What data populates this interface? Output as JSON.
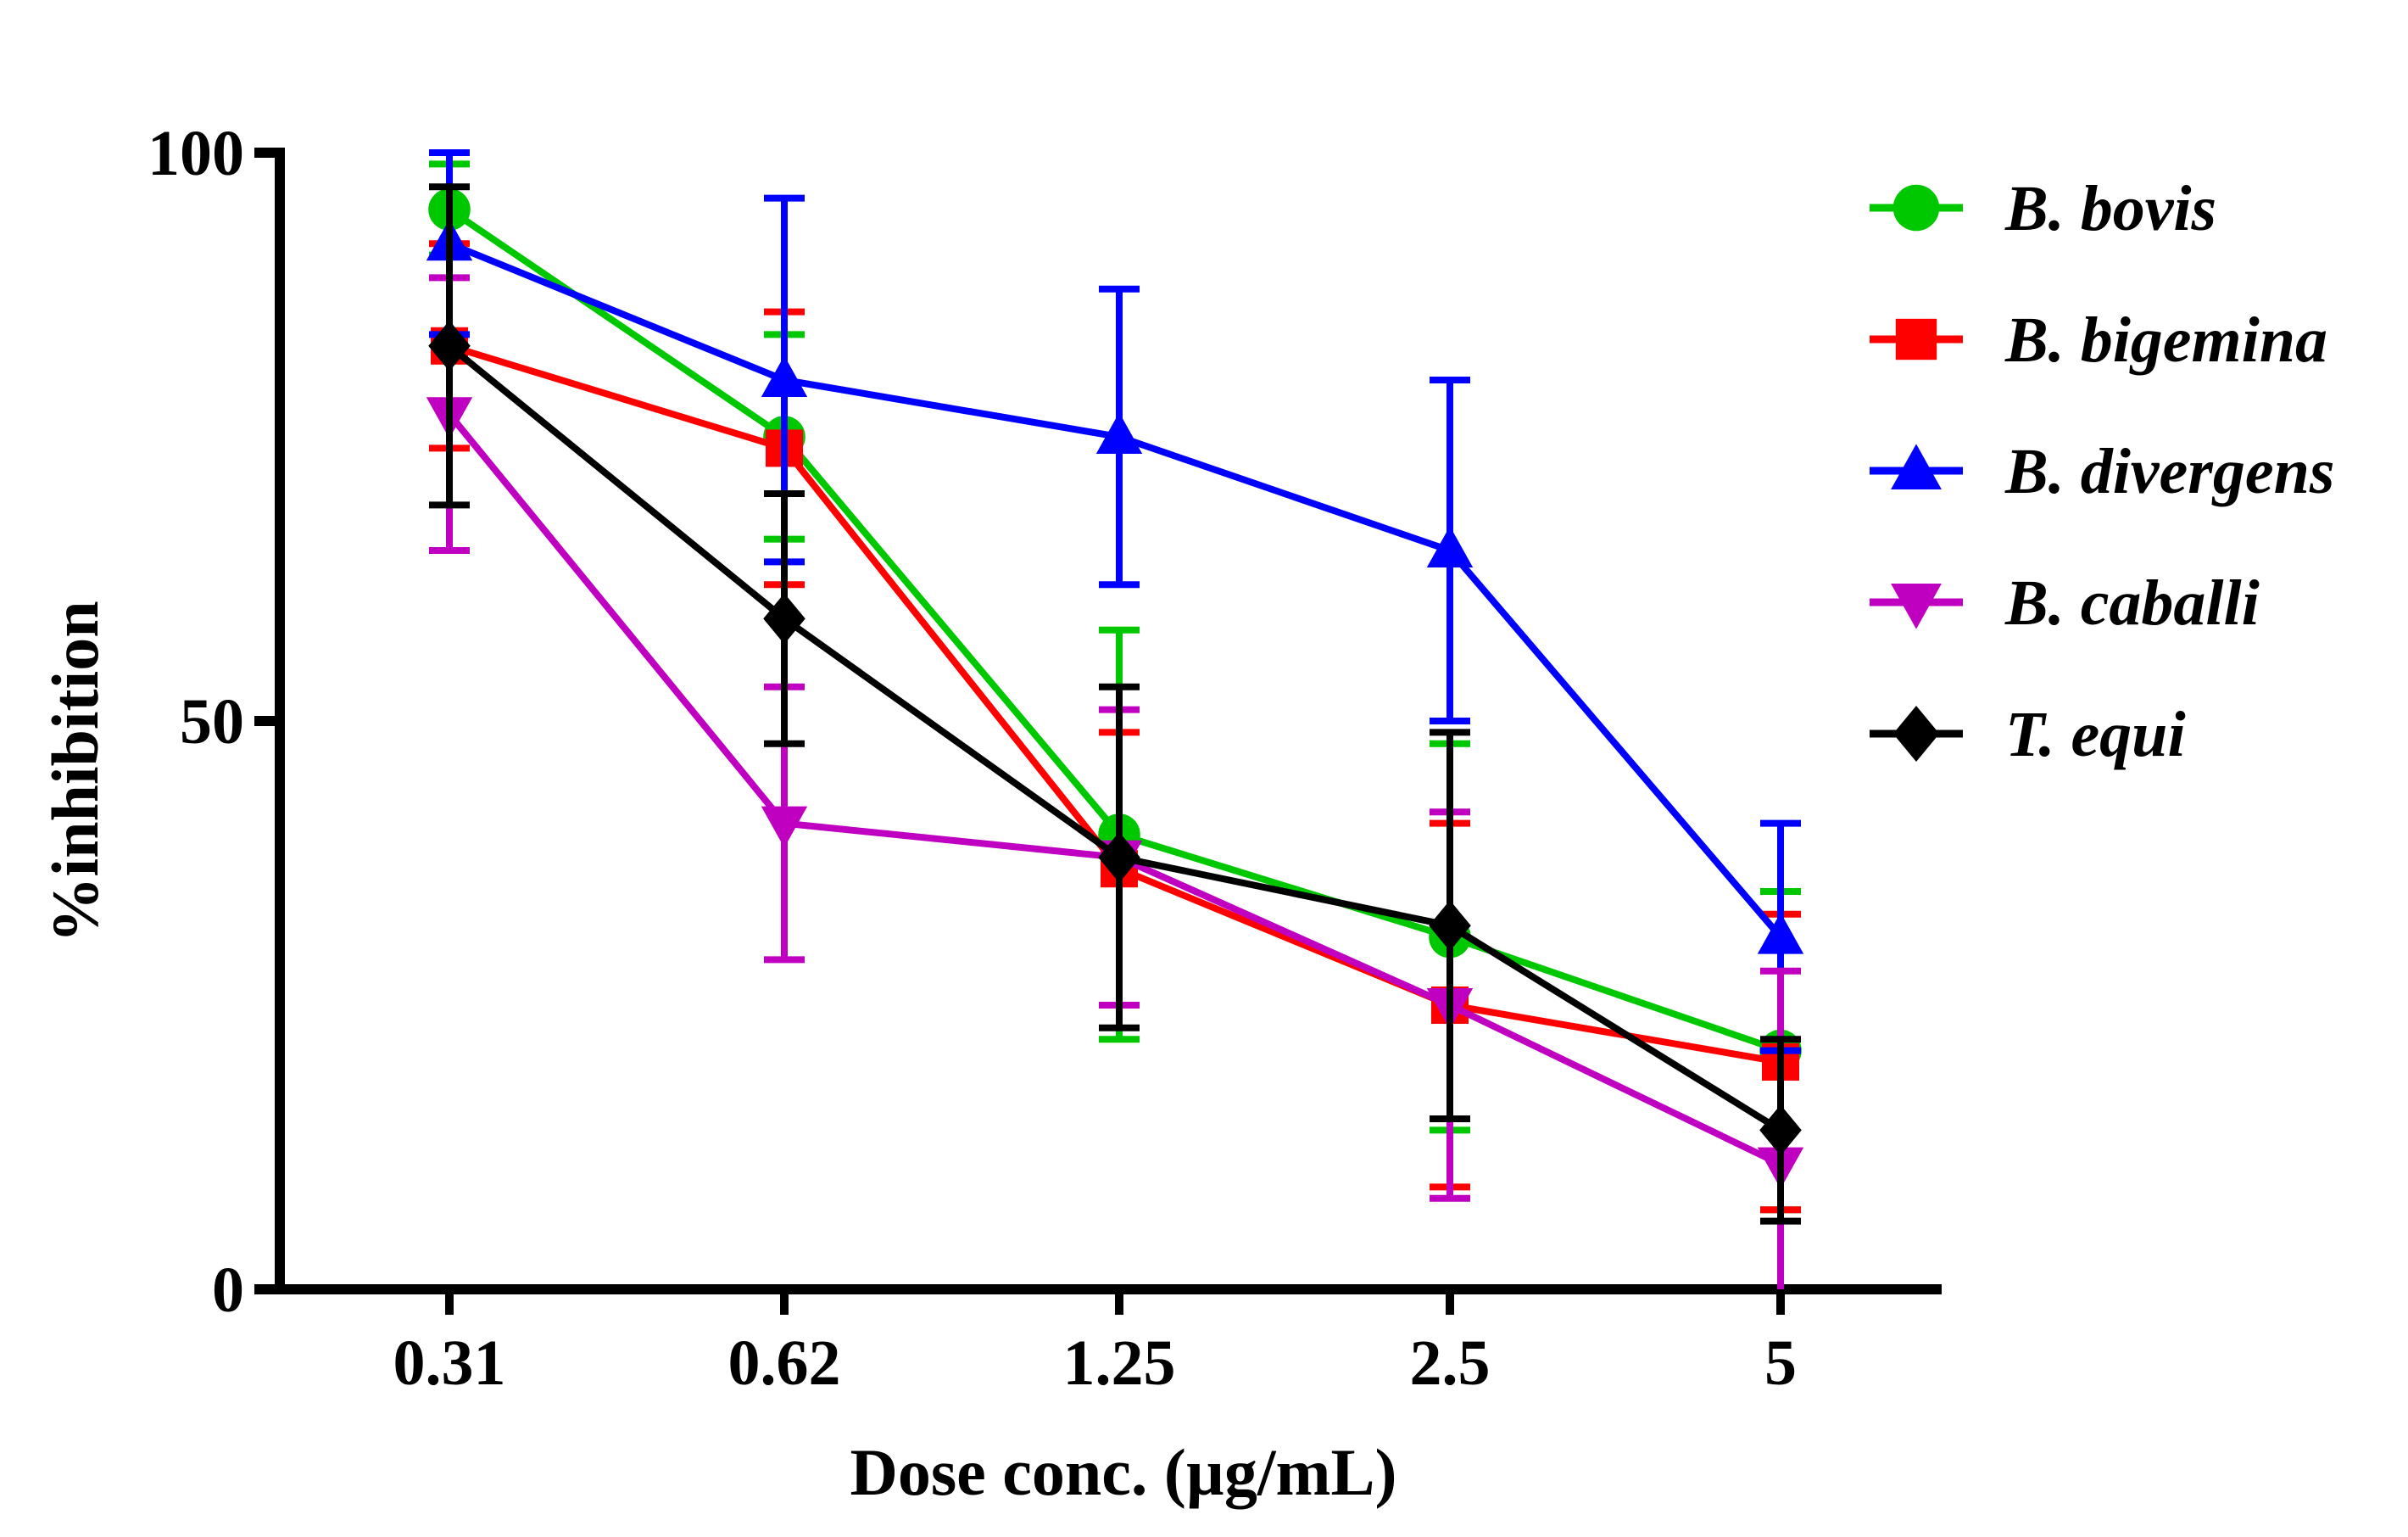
{
  "chart_data": {
    "type": "line",
    "title": "",
    "xlabel": "Dose conc. (µg/mL)",
    "ylabel": "%inhibition",
    "categories": [
      "0.31",
      "0.62",
      "1.25",
      "2.5",
      "5"
    ],
    "ylim": [
      0,
      100
    ],
    "yticks": [
      "0",
      "50",
      "100"
    ],
    "grid": false,
    "legend_position": "top-right",
    "series": [
      {
        "name": "B. bovis",
        "color": "#00c800",
        "marker": "circle",
        "values": [
          95,
          75,
          40,
          31,
          21
        ],
        "errors": [
          4,
          9,
          18,
          17,
          14
        ]
      },
      {
        "name": "B. bigemina",
        "color": "#ff0000",
        "marker": "square",
        "values": [
          83,
          74,
          37,
          25,
          20
        ],
        "errors": [
          9,
          12,
          12,
          16,
          13
        ]
      },
      {
        "name": "B. divergens",
        "color": "#0000ff",
        "marker": "triangle-up",
        "values": [
          92,
          80,
          75,
          65,
          31
        ],
        "errors": [
          8,
          16,
          13,
          15,
          10
        ]
      },
      {
        "name": "B. caballi",
        "color": "#c000c0",
        "marker": "triangle-down",
        "values": [
          77,
          41,
          38,
          25,
          11
        ],
        "errors": [
          12,
          12,
          13,
          17,
          17
        ]
      },
      {
        "name": "T. equi",
        "color": "#000000",
        "marker": "diamond",
        "values": [
          83,
          59,
          38,
          32,
          14
        ],
        "errors": [
          14,
          11,
          15,
          17,
          8
        ]
      }
    ]
  }
}
